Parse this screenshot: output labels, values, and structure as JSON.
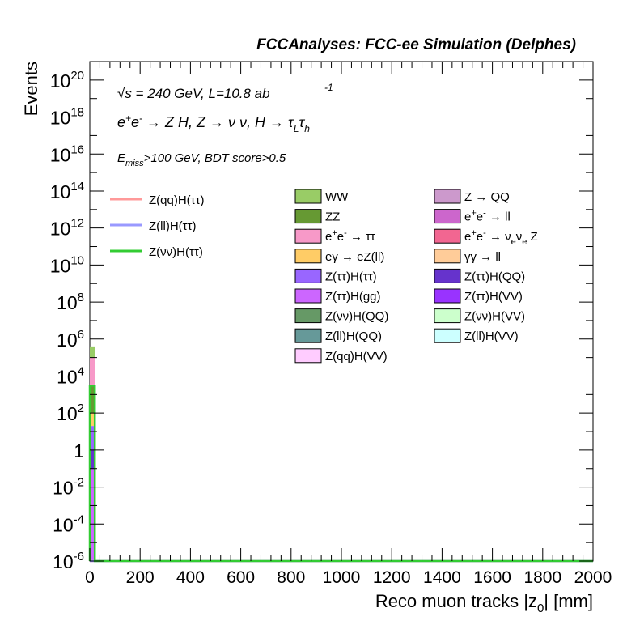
{
  "header": {
    "title": "FCCAnalyses: FCC-ee Simulation (Delphes)"
  },
  "annotations": {
    "energy_label": "√s = 240 GeV, L=10.8 ab",
    "lumi_exponent": "-1",
    "process_label": "e+e- → Z H, Z → νν, H → τLτh",
    "selection_label": "Emiss>100 GeV, BDT score>0.5"
  },
  "chart_data": {
    "type": "bar",
    "xlabel": "Reco muon tracks |z0| [mm]",
    "ylabel": "Events",
    "x_range": [
      0,
      2000
    ],
    "y_range": [
      1e-06,
      1e+21
    ],
    "y_scale": "log",
    "grid": false,
    "x_ticks": [
      "0",
      "200",
      "400",
      "600",
      "800",
      "1000",
      "1200",
      "1400",
      "1600",
      "1800",
      "2000"
    ],
    "y_ticks": [
      {
        "base": "10",
        "exp": "20",
        "value": 1e+20
      },
      {
        "base": "10",
        "exp": "18",
        "value": 1e+18
      },
      {
        "base": "10",
        "exp": "16",
        "value": 1e+16
      },
      {
        "base": "10",
        "exp": "14",
        "value": 100000000000000.0
      },
      {
        "base": "10",
        "exp": "12",
        "value": 1000000000000.0
      },
      {
        "base": "10",
        "exp": "10",
        "value": 10000000000.0
      },
      {
        "base": "10",
        "exp": "8",
        "value": 100000000.0
      },
      {
        "base": "10",
        "exp": "6",
        "value": 1000000.0
      },
      {
        "base": "10",
        "exp": "4",
        "value": 10000.0
      },
      {
        "base": "10",
        "exp": "2",
        "value": 100.0
      },
      {
        "base": "1",
        "exp": "",
        "value": 1
      },
      {
        "base": "10",
        "exp": "-2",
        "value": 0.01
      },
      {
        "base": "10",
        "exp": "-4",
        "value": 0.0001
      },
      {
        "base": "10",
        "exp": "-6",
        "value": 1e-06
      }
    ],
    "stack_bin": {
      "x": [
        0,
        20
      ]
    },
    "stacked_segments": [
      {
        "name": "WW",
        "color": "#99cc66",
        "low": 100000.0,
        "high": 400000.0
      },
      {
        "name": "e+e- → ττ",
        "color": "#f799c8",
        "low": 3000.0,
        "high": 100000.0
      },
      {
        "name": "ZZ",
        "color": "#669933",
        "low": 100.0,
        "high": 3000.0
      },
      {
        "name": "eγ → eZ(ll)",
        "color": "#ffcc66",
        "low": 20.0,
        "high": 100.0
      },
      {
        "name": "Z(ττ)H(ττ)",
        "color": "#9966ff",
        "low": 1,
        "high": 20.0
      },
      {
        "name": "Z(ττ)H(QQ)",
        "color": "#6633cc",
        "low": 0.1,
        "high": 1
      },
      {
        "name": "Z(ττ)H(gg)",
        "color": "#cc66ff",
        "low": 1e-06,
        "high": 0.1
      }
    ],
    "signal_lines": [
      {
        "name": "Z(qq)H(ττ)",
        "color": "#ff9999",
        "value": 1e-06
      },
      {
        "name": "Z(ll)H(ττ)",
        "color": "#9999ff",
        "value": 1e-06
      },
      {
        "name": "Z(νν)H(ττ)",
        "color": "#33cc33",
        "value": 3000.0
      }
    ],
    "legend_lines": [
      {
        "name": "Z(qq)H(ττ)",
        "color": "#ff9999"
      },
      {
        "name": "Z(ll)H(ττ)",
        "color": "#9999ff"
      },
      {
        "name": "Z(νν)H(ττ)",
        "color": "#33cc33"
      }
    ],
    "legend_boxes": [
      {
        "name": "WW",
        "color": "#99cc66"
      },
      {
        "name": "Z → QQ",
        "color": "#cc99cc"
      },
      {
        "name": "ZZ",
        "color": "#669933"
      },
      {
        "name": "e+e- → ll",
        "color": "#cc66cc"
      },
      {
        "name": "e+e- → ττ",
        "color": "#f799c8"
      },
      {
        "name": "e+e- → νeνe Z",
        "color": "#f26691"
      },
      {
        "name": "eγ → eZ(ll)",
        "color": "#ffcc66"
      },
      {
        "name": "γγ → ll",
        "color": "#ffcc99"
      },
      {
        "name": "Z(ττ)H(ττ)",
        "color": "#9966ff"
      },
      {
        "name": "Z(ττ)H(QQ)",
        "color": "#6633cc"
      },
      {
        "name": "Z(ττ)H(gg)",
        "color": "#cc66ff"
      },
      {
        "name": "Z(ττ)H(VV)",
        "color": "#9933ff"
      },
      {
        "name": "Z(νν)H(QQ)",
        "color": "#669966"
      },
      {
        "name": "Z(νν)H(VV)",
        "color": "#ccffcc"
      },
      {
        "name": "Z(ll)H(QQ)",
        "color": "#669999"
      },
      {
        "name": "Z(ll)H(VV)",
        "color": "#ccffff"
      },
      {
        "name": "Z(qq)H(VV)",
        "color": "#ffccff"
      }
    ]
  }
}
